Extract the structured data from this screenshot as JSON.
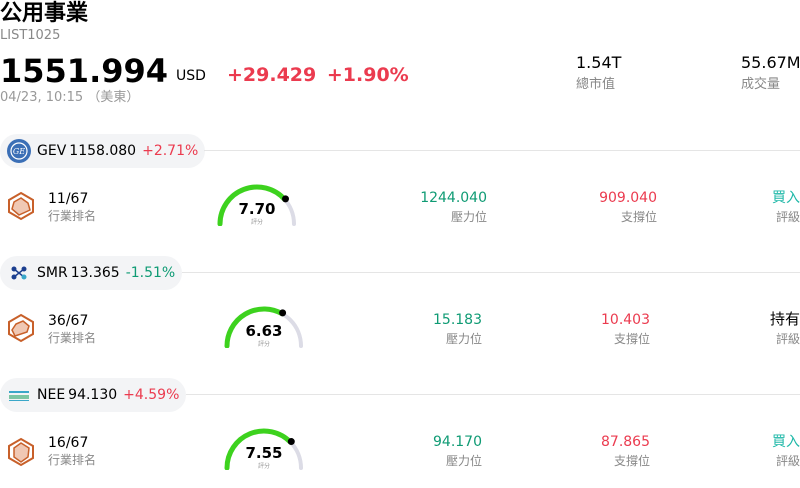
{
  "header": {
    "title": "公用事業",
    "code": "LIST1025",
    "price": "1551.994",
    "currency": "USD",
    "change": "+29.429",
    "change_pct": "+1.90%",
    "time": "04/23, 10:15 （美東）",
    "market_cap_value": "1.54T",
    "market_cap_label": "總市值",
    "volume_value": "55.67M",
    "volume_label": "成交量"
  },
  "stocks": [
    {
      "ticker": "GEV",
      "price": "1158.080",
      "change_pct": "+2.71%",
      "change_dir": "up",
      "rank": "11/67",
      "rank_label": "行業排名",
      "score": "7.70",
      "score_value": 7.7,
      "score_label": "評分",
      "resistance": "1244.040",
      "resistance_label": "壓力位",
      "support": "909.040",
      "support_label": "支撐位",
      "rating": "買入",
      "rating_label": "評級",
      "logo_color": "#3b6fb6"
    },
    {
      "ticker": "SMR",
      "price": "13.365",
      "change_pct": "-1.51%",
      "change_dir": "down",
      "rank": "36/67",
      "rank_label": "行業排名",
      "score": "6.63",
      "score_value": 6.63,
      "score_label": "評分",
      "resistance": "15.183",
      "resistance_label": "壓力位",
      "support": "10.403",
      "support_label": "支撐位",
      "rating": "持有",
      "rating_label": "評級",
      "logo_color": "#1c3f8f"
    },
    {
      "ticker": "NEE",
      "price": "94.130",
      "change_pct": "+4.59%",
      "change_dir": "up",
      "rank": "16/67",
      "rank_label": "行業排名",
      "score": "7.55",
      "score_value": 7.55,
      "score_label": "評分",
      "resistance": "94.170",
      "resistance_label": "壓力位",
      "support": "87.865",
      "support_label": "支撐位",
      "rating": "買入",
      "rating_label": "評級",
      "logo_color": "#3aa7c9"
    }
  ],
  "colors": {
    "up": "#eb3b4f",
    "down": "#0f9b74",
    "gauge_fill": "#3dd21e",
    "gauge_track": "#dcdce6",
    "rank_icon": "#c8602a"
  },
  "icons": [
    "ge-logo-icon",
    "nuscale-logo-icon",
    "nextera-logo-icon",
    "rank-radar-icon"
  ]
}
